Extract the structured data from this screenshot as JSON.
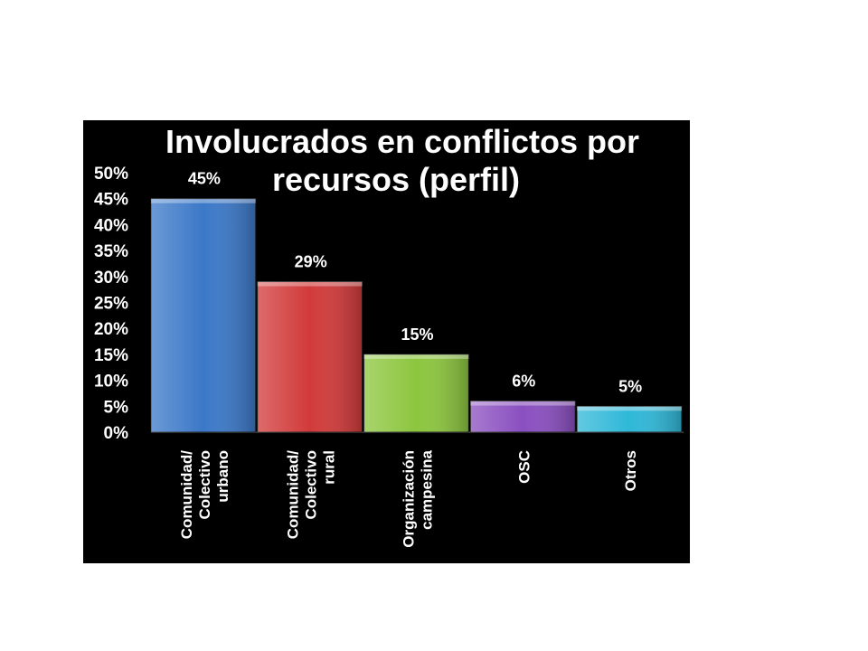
{
  "chart_data": {
    "type": "bar",
    "title_lines": [
      "Involucrados en conflictos por",
      "recursos (perfil)"
    ],
    "categories": [
      [
        "Comunidad/",
        "Colectivo",
        "urbano"
      ],
      [
        "Comunidad/",
        "Colectivo",
        "rural"
      ],
      [
        "Organización",
        "campesina"
      ],
      [
        "OSC"
      ],
      [
        "Otros"
      ]
    ],
    "values": [
      45,
      29,
      15,
      6,
      5
    ],
    "data_labels": [
      "45%",
      "29%",
      "15%",
      "6%",
      "5%"
    ],
    "colors": [
      "#3b78c8",
      "#d23a3a",
      "#8cc63e",
      "#8a4fc0",
      "#2fb8d8"
    ],
    "y_ticks": [
      "0%",
      "5%",
      "10%",
      "15%",
      "20%",
      "25%",
      "30%",
      "35%",
      "40%",
      "45%",
      "50%"
    ],
    "ylim": [
      0,
      50
    ],
    "grid": false,
    "legend": "none",
    "background": "#000000"
  }
}
